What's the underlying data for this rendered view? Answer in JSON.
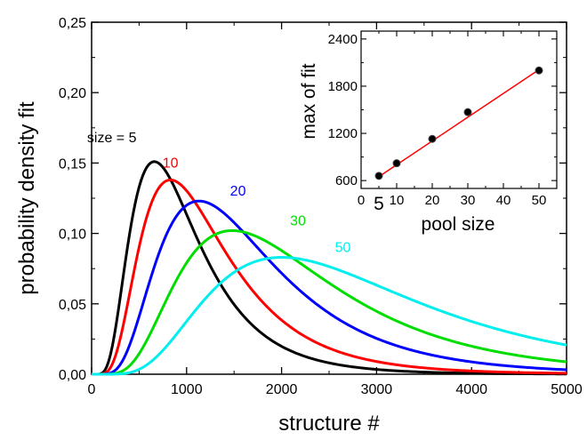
{
  "chart_data": [
    {
      "type": "line",
      "xlabel": "structure #",
      "ylabel": "probability density fit",
      "xlim": [
        0,
        5000
      ],
      "ylim": [
        0,
        0.25
      ],
      "x_ticks": [
        "0",
        "1000",
        "2000",
        "3000",
        "4000",
        "5000"
      ],
      "y_ticks": [
        "0,00",
        "0,05",
        "0,10",
        "0,15",
        "0,20",
        "0,25"
      ],
      "grid": false,
      "legend": "none",
      "series": [
        {
          "name": "size = 5",
          "color": "#000000",
          "peak_x": 660,
          "peak_y": 0.151
        },
        {
          "name": "10",
          "color": "#ff0000",
          "peak_x": 830,
          "peak_y": 0.138
        },
        {
          "name": "20",
          "color": "#0000ff",
          "peak_x": 1130,
          "peak_y": 0.123
        },
        {
          "name": "30",
          "color": "#00dd00",
          "peak_x": 1480,
          "peak_y": 0.102
        },
        {
          "name": "50",
          "color": "#00eeee",
          "peak_x": 2000,
          "peak_y": 0.083
        }
      ]
    },
    {
      "type": "scatter",
      "xlabel": "pool size",
      "ylabel": "max of fit",
      "xlim": [
        0,
        55
      ],
      "ylim": [
        500,
        2500
      ],
      "x_ticks": [
        "0",
        "10",
        "20",
        "30",
        "40",
        "50"
      ],
      "extra_x_tick": "5",
      "y_ticks": [
        "600",
        "1200",
        "1800",
        "2400"
      ],
      "points": [
        {
          "x": 5,
          "y": 660
        },
        {
          "x": 10,
          "y": 820
        },
        {
          "x": 20,
          "y": 1130
        },
        {
          "x": 30,
          "y": 1470
        },
        {
          "x": 50,
          "y": 2000
        }
      ],
      "fit_line": {
        "color": "#ff0000",
        "x": [
          5,
          50
        ],
        "y": [
          650,
          2010
        ]
      },
      "point_color": "#000000"
    }
  ]
}
